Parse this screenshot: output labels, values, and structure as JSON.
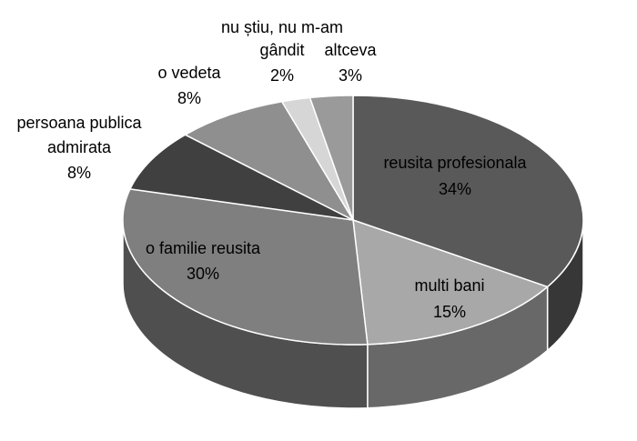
{
  "chart_data": {
    "type": "pie",
    "three_d": true,
    "title": "",
    "slices": [
      {
        "name": "reusita profesionala",
        "value": 34,
        "label": "34%",
        "color": "#595959",
        "label_color": "#000000"
      },
      {
        "name": "multi bani",
        "value": 15,
        "label": "15%",
        "color": "#a8a8a8",
        "label_color": "#000000"
      },
      {
        "name": "o familie reusita",
        "value": 30,
        "label": "30%",
        "color": "#7f7f7f",
        "label_color": "#000000"
      },
      {
        "name": "persoana publica admirata",
        "value": 8,
        "label": "8%",
        "color": "#404040",
        "label_color": "#000000"
      },
      {
        "name": "o vedeta",
        "value": 8,
        "label": "8%",
        "color": "#8f8f8f",
        "label_color": "#000000"
      },
      {
        "name": "nu știu, nu m-am gândit",
        "value": 2,
        "label": "2%",
        "color": "#d6d6d6",
        "label_color": "#000000"
      },
      {
        "name": "altceva",
        "value": 3,
        "label": "3%",
        "color": "#9a9a9a",
        "label_color": "#000000"
      }
    ],
    "legend": "none",
    "data_labels": "category name and percentage"
  }
}
